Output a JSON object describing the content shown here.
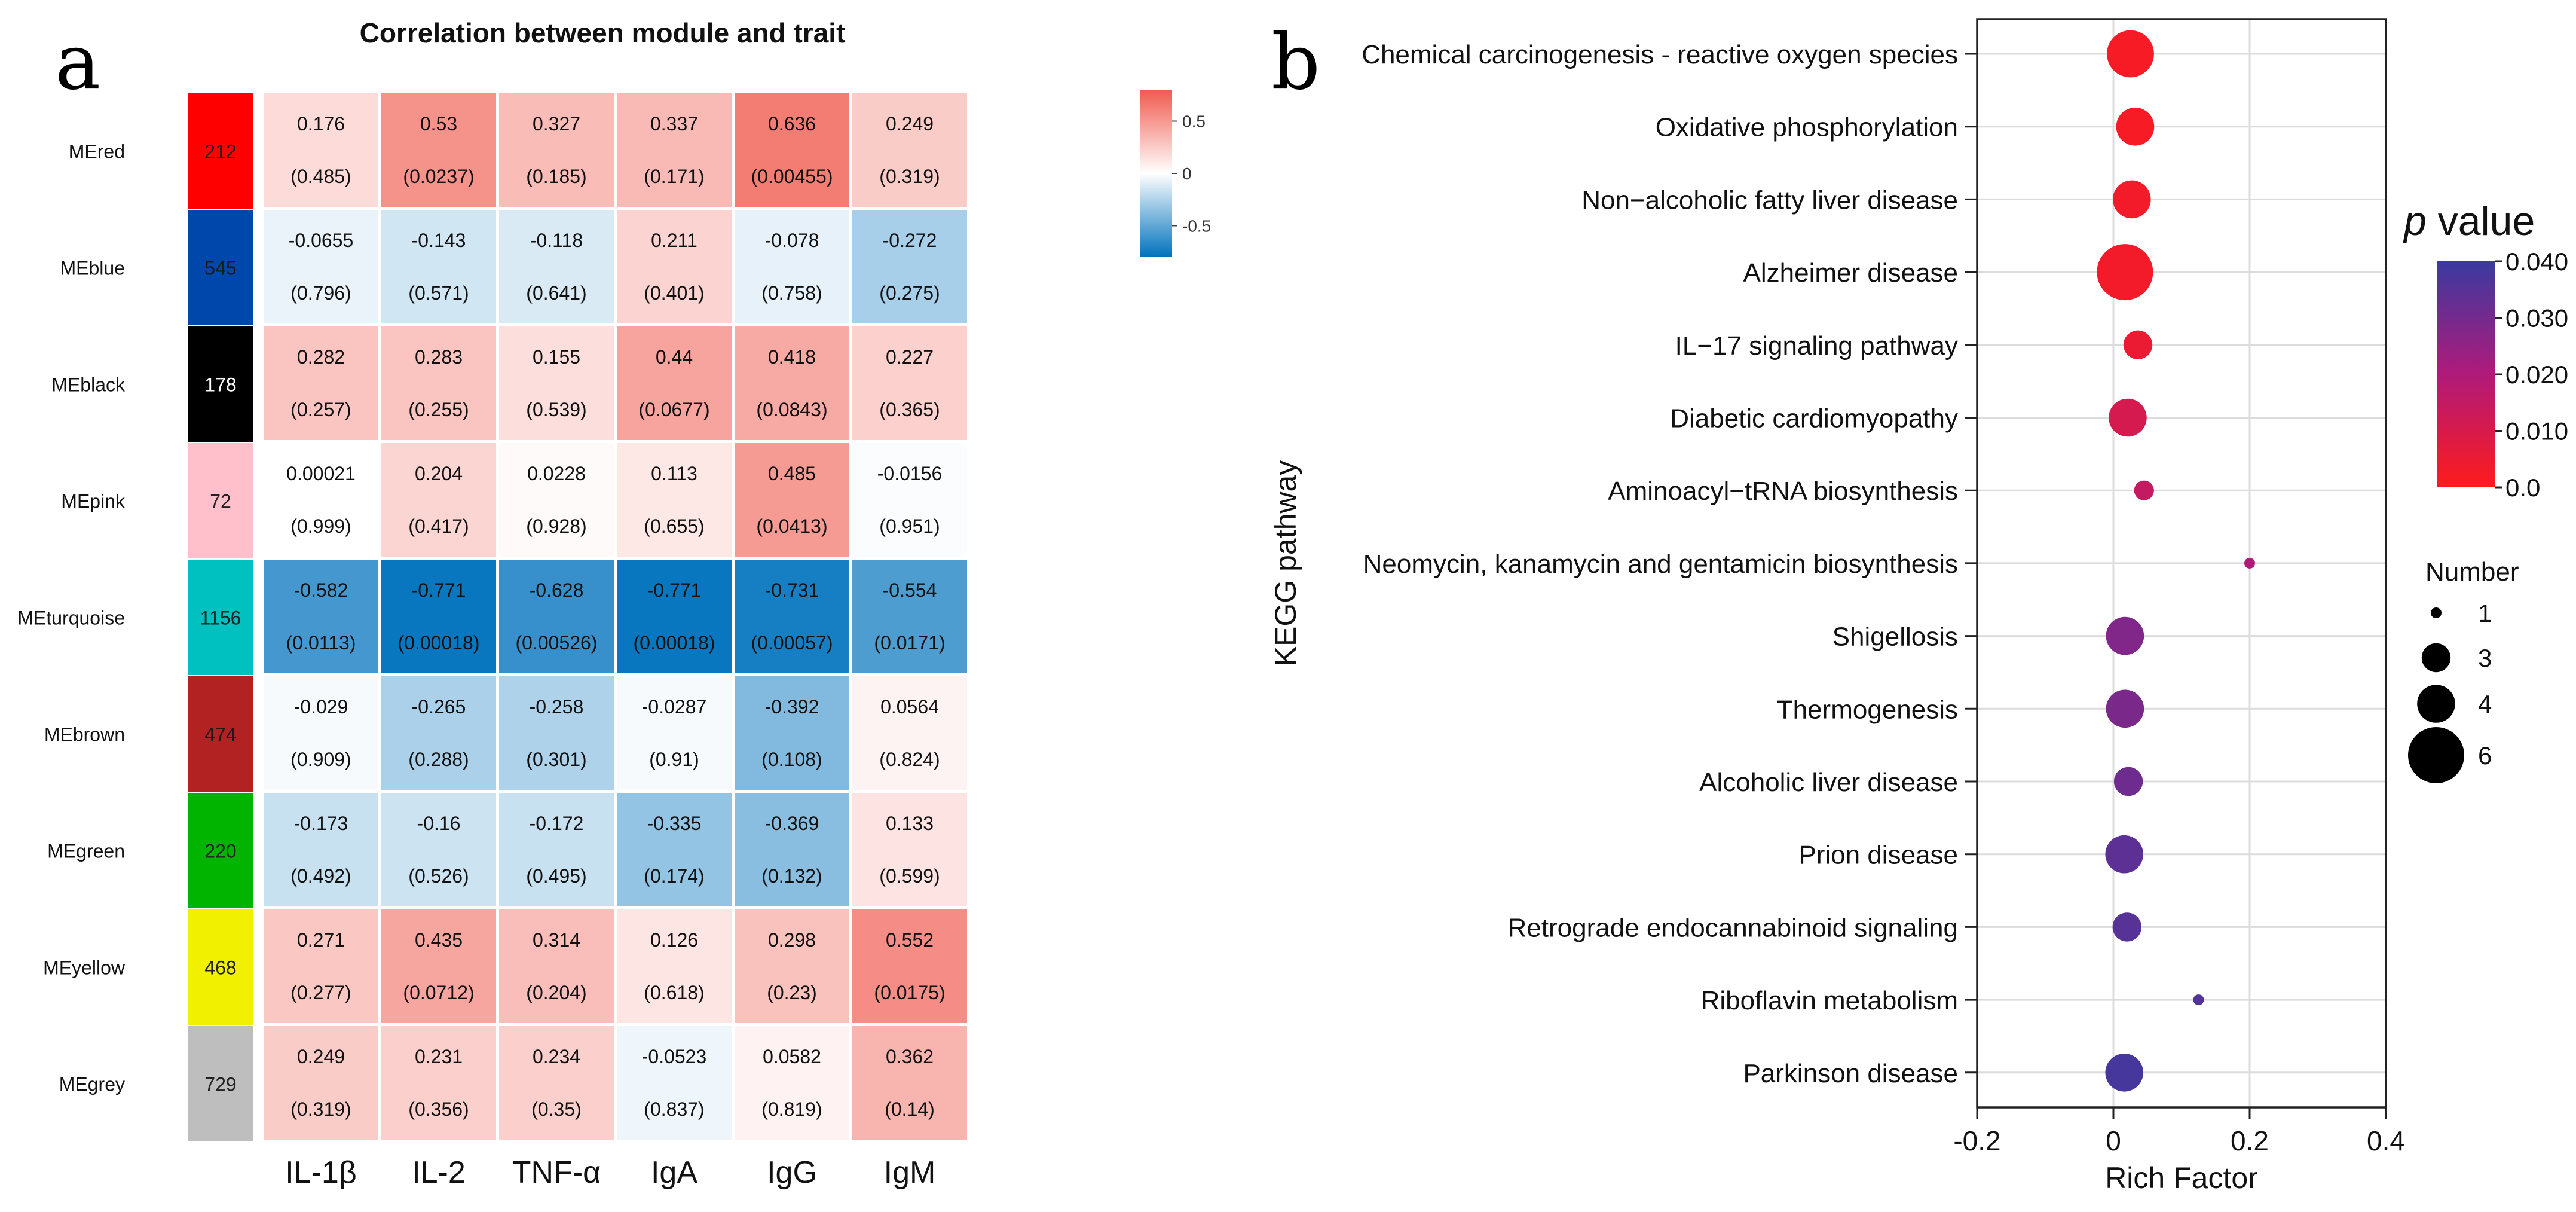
{
  "chart_data": [
    {
      "type": "heatmap",
      "panel_label": "a",
      "title": "Correlation between module and trait",
      "modules": [
        {
          "name": "MEred",
          "color": "#ff0000",
          "count": "212",
          "count_color": "#222222"
        },
        {
          "name": "MEblue",
          "color": "#0047ab",
          "count": "545",
          "count_color": "#1a1a1a"
        },
        {
          "name": "MEblack",
          "color": "#000000",
          "count": "178",
          "count_color": "#ffffff"
        },
        {
          "name": "MEpink",
          "color": "#ffc0cb",
          "count": "72",
          "count_color": "#222222"
        },
        {
          "name": "MEturquoise",
          "color": "#00c0c0",
          "count": "1156",
          "count_color": "#222222"
        },
        {
          "name": "MEbrown",
          "color": "#b22222",
          "count": "474",
          "count_color": "#1a1a1a"
        },
        {
          "name": "MEgreen",
          "color": "#00b400",
          "count": "220",
          "count_color": "#222222"
        },
        {
          "name": "MEyellow",
          "color": "#f0f000",
          "count": "468",
          "count_color": "#222222"
        },
        {
          "name": "MEgrey",
          "color": "#bebebe",
          "count": "729",
          "count_color": "#222222"
        }
      ],
      "traits": [
        "IL-1β",
        "IL-2",
        "TNF-α",
        "IgA",
        "IgG",
        "IgM"
      ],
      "correlation": [
        [
          "0.176",
          "0.53",
          "0.327",
          "0.337",
          "0.636",
          "0.249"
        ],
        [
          "-0.0655",
          "-0.143",
          "-0.118",
          "0.211",
          "-0.078",
          "-0.272"
        ],
        [
          "0.282",
          "0.283",
          "0.155",
          "0.44",
          "0.418",
          "0.227"
        ],
        [
          "0.00021",
          "0.204",
          "0.0228",
          "0.113",
          "0.485",
          "-0.0156"
        ],
        [
          "-0.582",
          "-0.771",
          "-0.628",
          "-0.771",
          "-0.731",
          "-0.554"
        ],
        [
          "-0.029",
          "-0.265",
          "-0.258",
          "-0.0287",
          "-0.392",
          "0.0564"
        ],
        [
          "-0.173",
          "-0.16",
          "-0.172",
          "-0.335",
          "-0.369",
          "0.133"
        ],
        [
          "0.271",
          "0.435",
          "0.314",
          "0.126",
          "0.298",
          "0.552"
        ],
        [
          "0.249",
          "0.231",
          "0.234",
          "-0.0523",
          "0.0582",
          "0.362"
        ]
      ],
      "p_values": [
        [
          "(0.485)",
          "(0.0237)",
          "(0.185)",
          "(0.171)",
          "(0.00455)",
          "(0.319)"
        ],
        [
          "(0.796)",
          "(0.571)",
          "(0.641)",
          "(0.401)",
          "(0.758)",
          "(0.275)"
        ],
        [
          "(0.257)",
          "(0.255)",
          "(0.539)",
          "(0.0677)",
          "(0.0843)",
          "(0.365)"
        ],
        [
          "(0.999)",
          "(0.417)",
          "(0.928)",
          "(0.655)",
          "(0.0413)",
          "(0.951)"
        ],
        [
          "(0.0113)",
          "(0.00018)",
          "(0.00526)",
          "(0.00018)",
          "(0.00057)",
          "(0.0171)"
        ],
        [
          "(0.909)",
          "(0.288)",
          "(0.301)",
          "(0.91)",
          "(0.108)",
          "(0.824)"
        ],
        [
          "(0.492)",
          "(0.526)",
          "(0.495)",
          "(0.174)",
          "(0.132)",
          "(0.599)"
        ],
        [
          "(0.277)",
          "(0.0712)",
          "(0.204)",
          "(0.618)",
          "(0.23)",
          "(0.0175)"
        ],
        [
          "(0.319)",
          "(0.356)",
          "(0.35)",
          "(0.837)",
          "(0.819)",
          "(0.14)"
        ]
      ],
      "colorbar": {
        "range": [
          -0.8,
          0.8
        ],
        "ticks": [
          {
            "value": 0.5,
            "label": "0.5"
          },
          {
            "value": 0,
            "label": "0"
          },
          {
            "value": -0.5,
            "label": "-0.5"
          }
        ],
        "colors": {
          "negative": "#0072bd",
          "zero": "#ffffff",
          "positive": "#f05a4f"
        }
      }
    },
    {
      "type": "scatter",
      "panel_label": "b",
      "xlabel": "Rich Factor",
      "ylabel": "KEGG pathway",
      "xlim": [
        -0.2,
        0.4
      ],
      "xticks": [
        {
          "value": -0.2,
          "label": "-0.2"
        },
        {
          "value": 0,
          "label": "0"
        },
        {
          "value": 0.2,
          "label": "0.2"
        },
        {
          "value": 0.4,
          "label": "0.4"
        }
      ],
      "grid": true,
      "points": [
        {
          "pathway": "Chemical carcinogenesis - reactive oxygen species",
          "rich_factor": 0.025,
          "number": 5,
          "p_value": 0.002
        },
        {
          "pathway": "Oxidative phosphorylation",
          "rich_factor": 0.032,
          "number": 4,
          "p_value": 0.002
        },
        {
          "pathway": "Non−alcoholic fatty liver disease",
          "rich_factor": 0.027,
          "number": 4,
          "p_value": 0.003
        },
        {
          "pathway": "Alzheimer disease",
          "rich_factor": 0.017,
          "number": 6,
          "p_value": 0.003
        },
        {
          "pathway": "IL−17 signaling pathway",
          "rich_factor": 0.036,
          "number": 3,
          "p_value": 0.005
        },
        {
          "pathway": "Diabetic cardiomyopathy",
          "rich_factor": 0.021,
          "number": 4,
          "p_value": 0.011
        },
        {
          "pathway": "Aminoacyl−tRNA biosynthesis",
          "rich_factor": 0.045,
          "number": 2,
          "p_value": 0.015
        },
        {
          "pathway": "Neomycin, kanamycin and gentamicin biosynthesis",
          "rich_factor": 0.2,
          "number": 1,
          "p_value": 0.02
        },
        {
          "pathway": "Shigellosis",
          "rich_factor": 0.017,
          "number": 4,
          "p_value": 0.028
        },
        {
          "pathway": "Thermogenesis",
          "rich_factor": 0.017,
          "number": 4,
          "p_value": 0.029
        },
        {
          "pathway": "Alcoholic liver disease",
          "rich_factor": 0.022,
          "number": 3,
          "p_value": 0.031
        },
        {
          "pathway": "Prion disease",
          "rich_factor": 0.016,
          "number": 4,
          "p_value": 0.034
        },
        {
          "pathway": "Retrograde endocannabinoid signaling",
          "rich_factor": 0.02,
          "number": 3,
          "p_value": 0.035
        },
        {
          "pathway": "Riboflavin metabolism",
          "rich_factor": 0.125,
          "number": 1,
          "p_value": 0.036
        },
        {
          "pathway": "Parkinson disease",
          "rich_factor": 0.016,
          "number": 4,
          "p_value": 0.038
        }
      ],
      "color_legend": {
        "title_italic": "p",
        "title_rest": " value",
        "range": [
          0.0,
          0.04
        ],
        "ticks": [
          {
            "value": 0.04,
            "label": "0.040"
          },
          {
            "value": 0.03,
            "label": "0.030"
          },
          {
            "value": 0.02,
            "label": "0.020"
          },
          {
            "value": 0.01,
            "label": "0.010"
          },
          {
            "value": 0.0,
            "label": "0.0"
          }
        ],
        "colors": {
          "low": "#ff1b1b",
          "mid": "#b01a7a",
          "high": "#3a3aa0"
        }
      },
      "size_legend": {
        "title": "Number",
        "entries": [
          {
            "number": 1,
            "label": "1"
          },
          {
            "number": 3,
            "label": "3"
          },
          {
            "number": 4,
            "label": "4"
          },
          {
            "number": 6,
            "label": "6"
          }
        ]
      }
    }
  ]
}
